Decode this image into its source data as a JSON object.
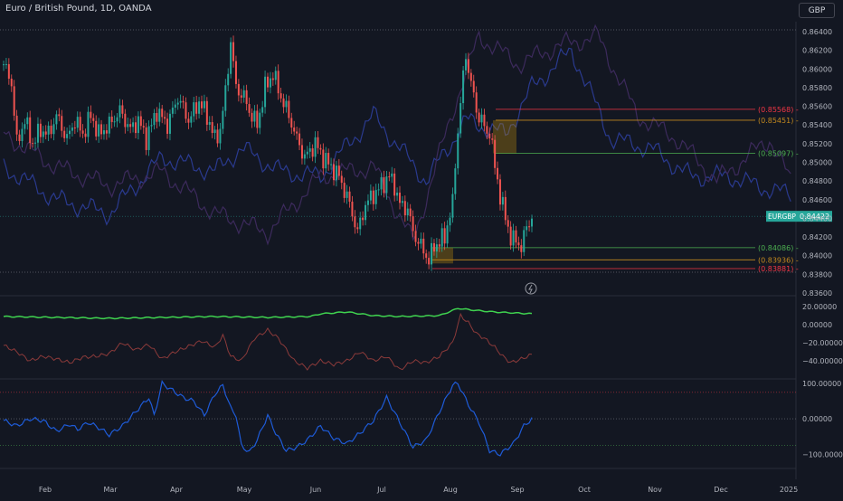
{
  "header": {
    "title": "Euro / British Pound, 1D, OANDA",
    "currency_button": "GBP"
  },
  "colors": {
    "background": "#131722",
    "up": "#26a69a",
    "down": "#ef5350",
    "blue_line": "#2a3a8f",
    "purple_line": "#3c2a5c",
    "level_red": "#f23645",
    "level_orange": "#b8860b",
    "level_green": "#4caf50",
    "osc_green": "#3fd24f",
    "osc_red": "#8b3a3a",
    "osc_blue": "#1e5bd8"
  },
  "price_levels": [
    {
      "label": "(0.85568) -",
      "color": "#f23645"
    },
    {
      "label": "(0.85451) -",
      "color": "#c58a1e"
    },
    {
      "label": "(0.85097) -",
      "color": "#4caf50"
    },
    {
      "label": "(0.84086) -",
      "color": "#4caf50"
    },
    {
      "label": "(0.83936) -",
      "color": "#c58a1e"
    },
    {
      "label": "(0.83881) -",
      "color": "#f23645"
    }
  ],
  "current_price": {
    "symbol": "EURGBP",
    "value": "0.84422"
  },
  "chart_data": [
    {
      "type": "candlestick",
      "title": "Euro / British Pound, 1D, OANDA",
      "x_ticks": [
        "Feb",
        "Mar",
        "Apr",
        "May",
        "Jun",
        "Jul",
        "Aug",
        "Sep",
        "Oct",
        "Nov",
        "Dec",
        "2025"
      ],
      "y_ticks": [
        "0.86400",
        "0.86200",
        "0.86000",
        "0.85800",
        "0.85600",
        "0.85400",
        "0.85200",
        "0.85000",
        "0.84800",
        "0.84600",
        "0.84400",
        "0.84200",
        "0.84000",
        "0.83800",
        "0.83600"
      ],
      "ylim": [
        0.836,
        0.8645
      ],
      "close_series": [
        [
          0,
          0.8605
        ],
        [
          3,
          0.8585
        ],
        [
          5,
          0.852
        ],
        [
          8,
          0.8545
        ],
        [
          11,
          0.852
        ],
        [
          14,
          0.8535
        ],
        [
          17,
          0.853
        ],
        [
          20,
          0.855
        ],
        [
          24,
          0.8525
        ],
        [
          27,
          0.8545
        ],
        [
          30,
          0.853
        ],
        [
          33,
          0.855
        ],
        [
          36,
          0.853
        ],
        [
          40,
          0.854
        ],
        [
          44,
          0.8555
        ],
        [
          48,
          0.8535
        ],
        [
          51,
          0.8545
        ],
        [
          54,
          0.8525
        ],
        [
          58,
          0.8555
        ],
        [
          62,
          0.854
        ],
        [
          66,
          0.857
        ],
        [
          70,
          0.8545
        ],
        [
          74,
          0.8565
        ],
        [
          77,
          0.855
        ],
        [
          80,
          0.8525
        ],
        [
          82,
          0.8535
        ],
        [
          84,
          0.8575
        ],
        [
          86,
          0.863
        ],
        [
          88,
          0.858
        ],
        [
          91,
          0.857
        ],
        [
          93,
          0.8555
        ],
        [
          96,
          0.854
        ],
        [
          99,
          0.858
        ],
        [
          102,
          0.8595
        ],
        [
          105,
          0.857
        ],
        [
          108,
          0.855
        ],
        [
          111,
          0.8525
        ],
        [
          114,
          0.8505
        ],
        [
          118,
          0.852
        ],
        [
          121,
          0.8505
        ],
        [
          124,
          0.8495
        ],
        [
          127,
          0.8485
        ],
        [
          129,
          0.847
        ],
        [
          131,
          0.8455
        ],
        [
          134,
          0.8425
        ],
        [
          137,
          0.8455
        ],
        [
          140,
          0.8465
        ],
        [
          143,
          0.8475
        ],
        [
          146,
          0.8485
        ],
        [
          148,
          0.8475
        ],
        [
          150,
          0.8455
        ],
        [
          153,
          0.845
        ],
        [
          155,
          0.8425
        ],
        [
          157,
          0.8415
        ],
        [
          159,
          0.8405
        ],
        [
          161,
          0.8395
        ],
        [
          163,
          0.841
        ],
        [
          165,
          0.8415
        ],
        [
          167,
          0.842
        ],
        [
          169,
          0.8445
        ],
        [
          170,
          0.8455
        ],
        [
          171,
          0.85
        ],
        [
          173,
          0.8565
        ],
        [
          175,
          0.8615
        ],
        [
          177,
          0.8585
        ],
        [
          179,
          0.8555
        ],
        [
          181,
          0.8545
        ],
        [
          183,
          0.853
        ],
        [
          184,
          0.8535
        ],
        [
          186,
          0.8495
        ],
        [
          188,
          0.8465
        ],
        [
          190,
          0.844
        ],
        [
          192,
          0.842
        ],
        [
          194,
          0.8415
        ],
        [
          196,
          0.841
        ],
        [
          198,
          0.843
        ],
        [
          200,
          0.8442
        ]
      ],
      "ohlc_latest": {
        "value": 0.84422
      }
    },
    {
      "type": "line",
      "series": [
        {
          "color": "#3fd24f",
          "values": [
            [
              0,
              9
            ],
            [
              20,
              8
            ],
            [
              40,
              7
            ],
            [
              60,
              8
            ],
            [
              80,
              9
            ],
            [
              100,
              8
            ],
            [
              116,
              9
            ],
            [
              120,
              12
            ],
            [
              130,
              14
            ],
            [
              140,
              10
            ],
            [
              150,
              9
            ],
            [
              165,
              10
            ],
            [
              172,
              18
            ],
            [
              178,
              16
            ],
            [
              186,
              14
            ],
            [
              200,
              12
            ]
          ]
        },
        {
          "color": "#8b3a3a",
          "values": [
            [
              0,
              -23
            ],
            [
              5,
              -30
            ],
            [
              10,
              -40
            ],
            [
              15,
              -35
            ],
            [
              20,
              -38
            ],
            [
              25,
              -42
            ],
            [
              30,
              -36
            ],
            [
              35,
              -35
            ],
            [
              40,
              -32
            ],
            [
              45,
              -20
            ],
            [
              50,
              -28
            ],
            [
              55,
              -22
            ],
            [
              60,
              -38
            ],
            [
              65,
              -30
            ],
            [
              70,
              -24
            ],
            [
              75,
              -18
            ],
            [
              80,
              -25
            ],
            [
              83,
              -12
            ],
            [
              86,
              -35
            ],
            [
              90,
              -40
            ],
            [
              95,
              -15
            ],
            [
              100,
              -6
            ],
            [
              104,
              -15
            ],
            [
              110,
              -40
            ],
            [
              115,
              -48
            ],
            [
              120,
              -40
            ],
            [
              125,
              -44
            ],
            [
              130,
              -40
            ],
            [
              135,
              -30
            ],
            [
              140,
              -40
            ],
            [
              145,
              -35
            ],
            [
              150,
              -50
            ],
            [
              155,
              -40
            ],
            [
              160,
              -42
            ],
            [
              165,
              -35
            ],
            [
              170,
              -20
            ],
            [
              173,
              10
            ],
            [
              176,
              2
            ],
            [
              179,
              -10
            ],
            [
              182,
              -15
            ],
            [
              186,
              -25
            ],
            [
              189,
              -35
            ],
            [
              192,
              -42
            ],
            [
              196,
              -38
            ],
            [
              200,
              -33
            ]
          ]
        }
      ],
      "y_ticks": [
        "20.00000",
        "0.00000",
        "−20.00000",
        "−40.00000"
      ],
      "ylim": [
        -52,
        27
      ]
    },
    {
      "type": "line",
      "series": [
        {
          "color": "#1e5bd8",
          "values": [
            [
              0,
              -5
            ],
            [
              5,
              -20
            ],
            [
              10,
              0
            ],
            [
              15,
              -5
            ],
            [
              20,
              -35
            ],
            [
              25,
              -15
            ],
            [
              28,
              -30
            ],
            [
              32,
              -10
            ],
            [
              36,
              -25
            ],
            [
              40,
              -45
            ],
            [
              45,
              -20
            ],
            [
              50,
              20
            ],
            [
              55,
              60
            ],
            [
              57,
              10
            ],
            [
              60,
              100
            ],
            [
              64,
              80
            ],
            [
              68,
              60
            ],
            [
              72,
              50
            ],
            [
              76,
              10
            ],
            [
              80,
              70
            ],
            [
              83,
              95
            ],
            [
              86,
              30
            ],
            [
              88,
              10
            ],
            [
              90,
              -75
            ],
            [
              93,
              -95
            ],
            [
              96,
              -60
            ],
            [
              100,
              10
            ],
            [
              103,
              -40
            ],
            [
              107,
              -90
            ],
            [
              111,
              -80
            ],
            [
              115,
              -60
            ],
            [
              120,
              -20
            ],
            [
              125,
              -55
            ],
            [
              130,
              -70
            ],
            [
              135,
              -40
            ],
            [
              140,
              -5
            ],
            [
              145,
              60
            ],
            [
              150,
              -10
            ],
            [
              155,
              -80
            ],
            [
              160,
              -60
            ],
            [
              165,
              20
            ],
            [
              170,
              95
            ],
            [
              172,
              100
            ],
            [
              176,
              40
            ],
            [
              180,
              -10
            ],
            [
              184,
              -90
            ],
            [
              188,
              -100
            ],
            [
              193,
              -70
            ],
            [
              197,
              -20
            ],
            [
              200,
              0
            ]
          ]
        }
      ],
      "y_ticks": [
        "100.00000",
        "0.00000",
        "−100.00000"
      ],
      "ylim": [
        -135,
        105
      ]
    }
  ]
}
